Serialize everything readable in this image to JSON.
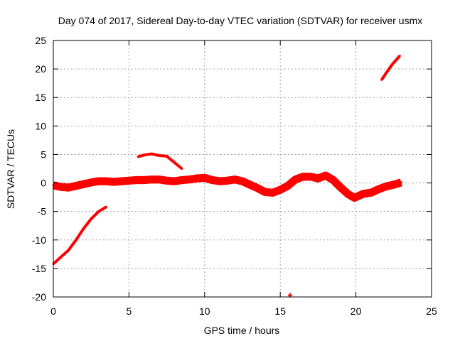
{
  "chart_data": {
    "type": "scatter",
    "title": "Day 074 of 2017, Sidereal Day-to-day VTEC variation (SDTVAR) for receiver usmx",
    "xlabel": "GPS time / hours",
    "ylabel": "SDTVAR / TECUs",
    "xlim": [
      0,
      25
    ],
    "ylim": [
      -20,
      25
    ],
    "x_ticks": [
      "0",
      "5",
      "10",
      "15",
      "20",
      "25"
    ],
    "y_ticks": [
      "25",
      "20",
      "15",
      "10",
      "5",
      "0",
      "-5",
      "-10",
      "-15",
      "-20"
    ],
    "x_tick_values": [
      0,
      5,
      10,
      15,
      20,
      25
    ],
    "y_tick_values": [
      25,
      20,
      15,
      10,
      5,
      0,
      -5,
      -10,
      -15,
      -20
    ],
    "grid": true,
    "marker_color": "#ff0000",
    "series": [
      {
        "name": "main-band",
        "band_width": 1.4,
        "x": [
          0.0,
          0.5,
          1.0,
          1.5,
          2.0,
          2.5,
          3.0,
          3.5,
          4.0,
          4.5,
          5.0,
          5.5,
          6.0,
          6.5,
          7.0,
          7.5,
          8.0,
          8.5,
          9.0,
          9.5,
          10.0,
          10.5,
          11.0,
          11.5,
          12.0,
          12.5,
          13.0,
          13.5,
          14.0,
          14.5,
          15.0,
          15.5,
          16.0,
          16.5,
          17.0,
          17.5,
          18.0,
          18.5,
          19.0,
          19.5,
          19.9,
          20.5,
          21.0,
          21.5,
          22.0,
          22.5,
          23.0
        ],
        "y": [
          -0.4,
          -0.7,
          -0.8,
          -0.5,
          -0.2,
          0.1,
          0.3,
          0.3,
          0.2,
          0.3,
          0.4,
          0.5,
          0.5,
          0.6,
          0.6,
          0.4,
          0.3,
          0.5,
          0.6,
          0.8,
          0.9,
          0.5,
          0.3,
          0.4,
          0.6,
          0.3,
          -0.3,
          -0.9,
          -1.6,
          -1.7,
          -1.2,
          -0.5,
          0.6,
          1.1,
          1.1,
          0.8,
          1.3,
          0.5,
          -0.8,
          -2.0,
          -2.6,
          -1.9,
          -1.7,
          -1.1,
          -0.6,
          -0.3,
          0.1
        ]
      },
      {
        "name": "arc-rising-early",
        "band_width": 0.5,
        "x": [
          0.0,
          0.5,
          1.0,
          1.5,
          2.0,
          2.5,
          3.0,
          3.5
        ],
        "y": [
          -14.2,
          -13.0,
          -11.8,
          -10.0,
          -8.0,
          -6.3,
          -5.0,
          -4.2
        ]
      },
      {
        "name": "arc-morning",
        "band_width": 0.5,
        "x": [
          5.6,
          6.0,
          6.5,
          7.0,
          7.5,
          8.0,
          8.5
        ],
        "y": [
          4.6,
          4.9,
          5.1,
          4.8,
          4.7,
          3.6,
          2.5
        ]
      },
      {
        "name": "arc-late",
        "band_width": 0.5,
        "x": [
          21.7,
          22.0,
          22.4,
          22.9
        ],
        "y": [
          18.1,
          19.3,
          20.8,
          22.3
        ]
      },
      {
        "name": "outlier-point",
        "band_width": 0.3,
        "x": [
          15.65
        ],
        "y": [
          -19.7
        ]
      }
    ]
  }
}
